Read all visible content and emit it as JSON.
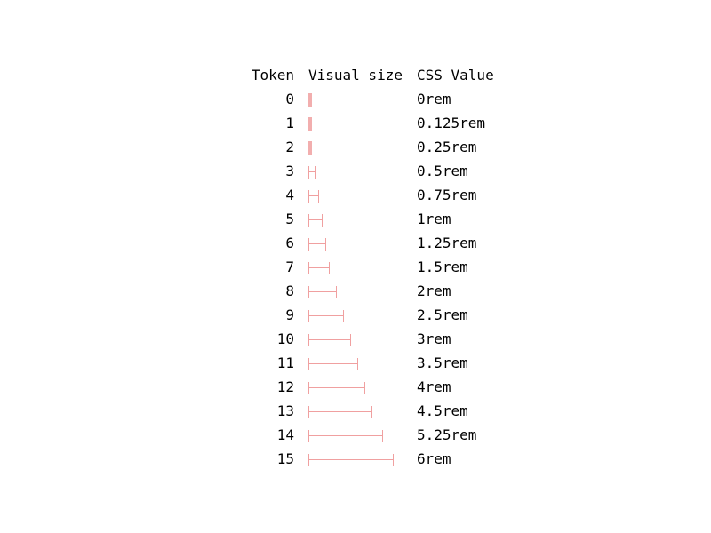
{
  "accent_color": "#f0a0a0",
  "headers": {
    "token": "Token",
    "visual": "Visual size",
    "value": "CSS Value"
  },
  "rows": [
    {
      "token": "0",
      "value": "0rem",
      "rem": 0
    },
    {
      "token": "1",
      "value": "0.125rem",
      "rem": 0.125
    },
    {
      "token": "2",
      "value": "0.25rem",
      "rem": 0.25
    },
    {
      "token": "3",
      "value": "0.5rem",
      "rem": 0.5
    },
    {
      "token": "4",
      "value": "0.75rem",
      "rem": 0.75
    },
    {
      "token": "5",
      "value": "1rem",
      "rem": 1
    },
    {
      "token": "6",
      "value": "1.25rem",
      "rem": 1.25
    },
    {
      "token": "7",
      "value": "1.5rem",
      "rem": 1.5
    },
    {
      "token": "8",
      "value": "2rem",
      "rem": 2
    },
    {
      "token": "9",
      "value": "2.5rem",
      "rem": 2.5
    },
    {
      "token": "10",
      "value": "3rem",
      "rem": 3
    },
    {
      "token": "11",
      "value": "3.5rem",
      "rem": 3.5
    },
    {
      "token": "12",
      "value": "4rem",
      "rem": 4
    },
    {
      "token": "13",
      "value": "4.5rem",
      "rem": 4.5
    },
    {
      "token": "14",
      "value": "5.25rem",
      "rem": 5.25
    },
    {
      "token": "15",
      "value": "6rem",
      "rem": 6
    }
  ]
}
